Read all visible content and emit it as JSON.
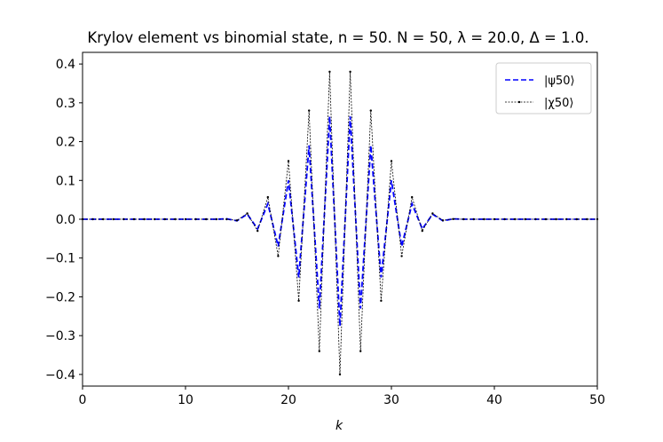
{
  "chart_data": {
    "type": "line",
    "title": "Krylov element vs binomial state, n = 50. N = 50, λ = 20.0, Δ = 1.0.",
    "xlabel": "k",
    "ylabel": "",
    "xlim": [
      0,
      50
    ],
    "ylim": [
      -0.43,
      0.43
    ],
    "xticks": [
      0,
      10,
      20,
      30,
      40,
      50
    ],
    "yticks": [
      -0.4,
      -0.3,
      -0.2,
      -0.1,
      0.0,
      0.1,
      0.2,
      0.3,
      0.4
    ],
    "xtick_labels": [
      "0",
      "10",
      "20",
      "30",
      "40",
      "50"
    ],
    "ytick_labels": [
      "−0.4",
      "−0.3",
      "−0.2",
      "−0.1",
      "0.0",
      "0.1",
      "0.2",
      "0.3",
      "0.4"
    ],
    "grid": false,
    "legend_position": "top-right",
    "x": [
      0,
      1,
      2,
      3,
      4,
      5,
      6,
      7,
      8,
      9,
      10,
      11,
      12,
      13,
      14,
      15,
      16,
      17,
      18,
      19,
      20,
      21,
      22,
      23,
      24,
      25,
      26,
      27,
      28,
      29,
      30,
      31,
      32,
      33,
      34,
      35,
      36,
      37,
      38,
      39,
      40,
      41,
      42,
      43,
      44,
      45,
      46,
      47,
      48,
      49,
      50
    ],
    "series": [
      {
        "name": "|ψ50⟩",
        "color": "#0000ff",
        "style": "dashed",
        "values": [
          0,
          0,
          0,
          0,
          0,
          0,
          0,
          0,
          0,
          0,
          0,
          0,
          0,
          0,
          0.001,
          -0.004,
          0.013,
          -0.025,
          0.04,
          -0.07,
          0.1,
          -0.15,
          0.19,
          -0.23,
          0.265,
          -0.275,
          0.265,
          -0.23,
          0.19,
          -0.15,
          0.1,
          -0.07,
          0.04,
          -0.025,
          0.013,
          -0.004,
          0.001,
          0,
          0,
          0,
          0,
          0,
          0,
          0,
          0,
          0,
          0,
          0,
          0,
          0,
          0
        ]
      },
      {
        "name": "|χ50⟩",
        "color": "#000000",
        "style": "dotted-marker",
        "values": [
          0,
          0,
          0,
          0,
          0,
          0,
          0,
          0,
          0,
          0,
          0,
          0,
          0,
          0,
          0,
          -0.003,
          0.015,
          -0.03,
          0.057,
          -0.095,
          0.15,
          -0.21,
          0.28,
          -0.34,
          0.38,
          -0.4,
          0.38,
          -0.34,
          0.28,
          -0.21,
          0.15,
          -0.095,
          0.057,
          -0.03,
          0.015,
          -0.003,
          0.0005,
          0,
          0,
          0,
          0,
          0,
          0,
          0,
          0,
          0,
          0,
          0,
          0,
          0,
          0
        ]
      }
    ]
  }
}
